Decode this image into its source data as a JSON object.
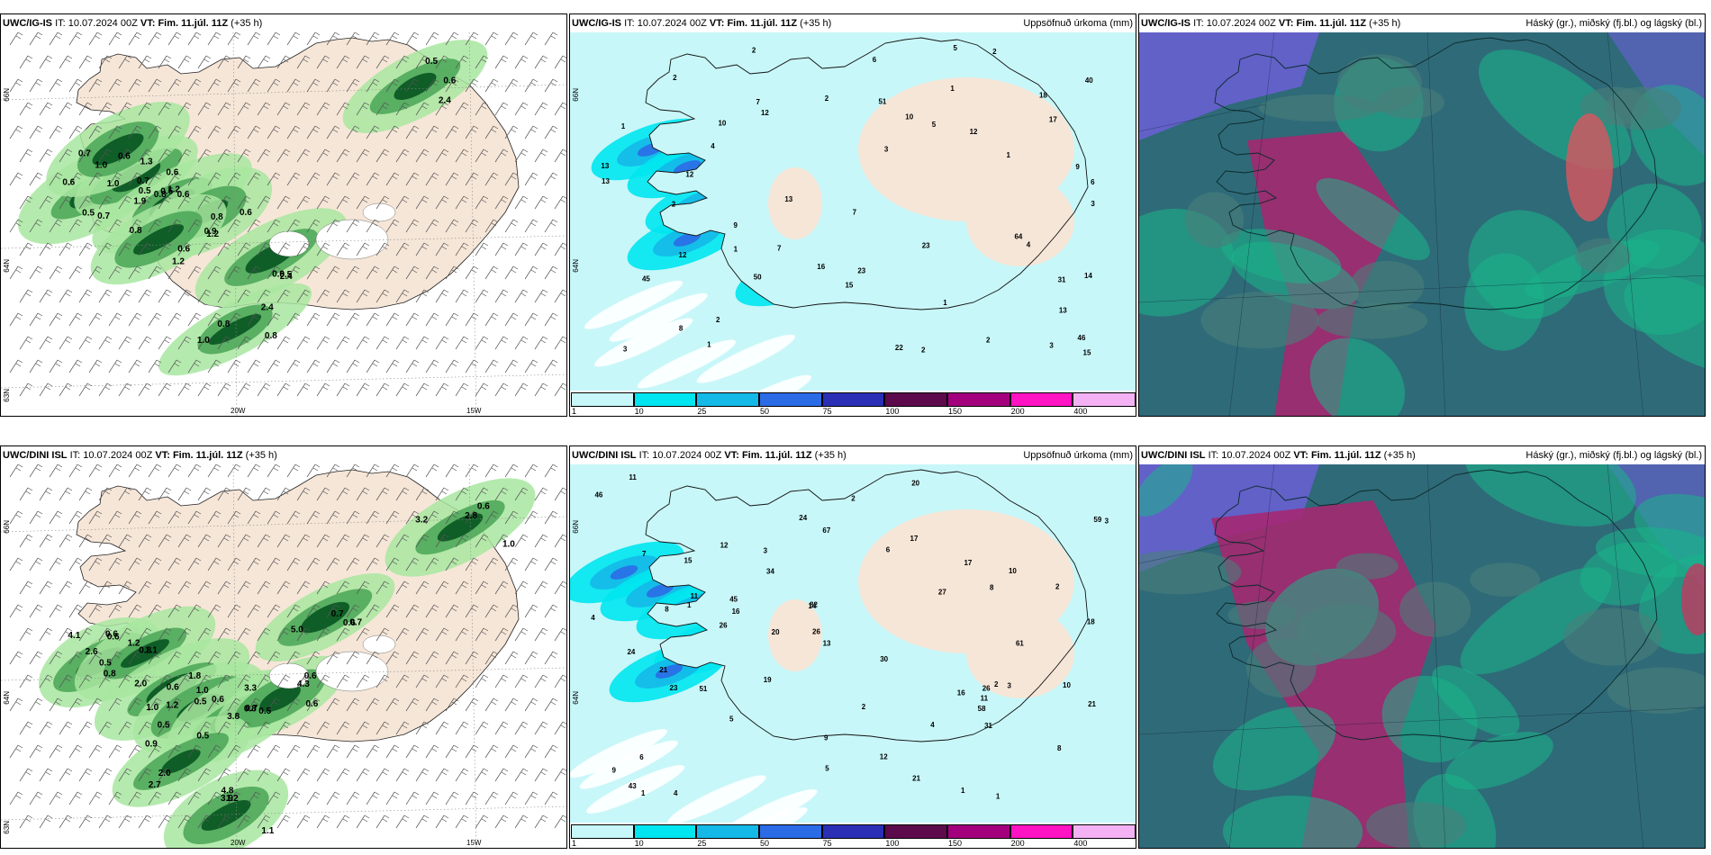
{
  "panels": [
    {
      "id": "p1",
      "model": "UWC/IG-IS",
      "it_label": "IT:",
      "it_value": "10.07.2024 00Z",
      "vt_label": "VT: Fim. 11.júl. 11Z",
      "lead": "(+35 h)",
      "right_title": "",
      "kind": "wind",
      "lat_labels": [
        "66N",
        "64N",
        "63N"
      ],
      "lon_labels": [
        "20W",
        "15W"
      ],
      "values": [
        "0.5",
        "0.5",
        "0.6",
        "0.5",
        "1.2",
        "1.0",
        "0.9",
        "0.7",
        "0.6",
        "0.6",
        "1.0",
        "0.8",
        "0.9",
        "1.2",
        "2.4",
        "2.4",
        "1.3",
        "2.4",
        "1.9",
        "0.6",
        "0.7",
        "0.6",
        "0.8",
        "0.8",
        "0.5",
        "1.0",
        "0.5",
        "0.7",
        "0.6",
        "0.8",
        "1.2",
        "0.6",
        "0.8"
      ]
    },
    {
      "id": "p2",
      "model": "UWC/IG-IS",
      "it_label": "IT:",
      "it_value": "10.07.2024 00Z",
      "vt_label": "VT: Fim. 11.júl. 11Z",
      "lead": "(+35 h)",
      "right_title": "Uppsöfnuð úrkoma (mm)",
      "kind": "precip",
      "lat_labels": [
        "66N",
        "64N"
      ],
      "lon_labels": [],
      "values": [
        "12",
        "9",
        "5",
        "6",
        "13",
        "14",
        "7",
        "5",
        "31",
        "18",
        "4",
        "4",
        "1",
        "50",
        "45",
        "7",
        "9",
        "13",
        "2",
        "2",
        "46",
        "51",
        "8",
        "12",
        "3",
        "2",
        "3",
        "1",
        "22",
        "40",
        "1",
        "15",
        "2",
        "6",
        "12",
        "13",
        "3",
        "23",
        "17",
        "64",
        "2",
        "1",
        "16",
        "23",
        "13",
        "2",
        "10",
        "12",
        "7",
        "2",
        "3",
        "10",
        "2",
        "1",
        "1",
        "15"
      ]
    },
    {
      "id": "p3",
      "model": "UWC/IG-IS",
      "it_label": "IT:",
      "it_value": "10.07.2024 00Z",
      "vt_label": "VT: Fim. 11.júl. 11Z",
      "lead": "(+35 h)",
      "right_title": "Háský (gr.), miðský (fj.bl.) og lágský (bl.)",
      "kind": "cloud",
      "lat_labels": [],
      "lon_labels": [],
      "values": []
    },
    {
      "id": "p4",
      "model": "UWC/DINI ISL",
      "it_label": "IT:",
      "it_value": "10.07.2024 00Z",
      "vt_label": "VT: Fim. 11.júl. 11Z",
      "lead": "(+35 h)",
      "right_title": "",
      "kind": "wind",
      "lat_labels": [
        "66N",
        "64N",
        "63N"
      ],
      "lon_labels": [
        "20W",
        "15W"
      ],
      "values": [
        "0.5",
        "0.6",
        "0.6",
        "0.5",
        "0.8",
        "0.5",
        "0.5",
        "1.2",
        "0.6",
        "0.7",
        "4.1",
        "1.8",
        "2.0",
        "3.3",
        "3.8",
        "4.3",
        "2.7",
        "3.9",
        "2.8",
        "5.0",
        "2.6",
        "0.8",
        "1.0",
        "1.0",
        "0.7",
        "0.6",
        "0.9",
        "4.8",
        "3.2",
        "0.6",
        "1.1",
        "0.8",
        "1.2",
        "0.5",
        "0.6",
        "0.6",
        "2.0",
        "1.1",
        "1.0",
        "0.7",
        "0.6",
        "1.2"
      ]
    },
    {
      "id": "p5",
      "model": "UWC/DINI ISL",
      "it_label": "IT:",
      "it_value": "10.07.2024 00Z",
      "vt_label": "VT: Fim. 11.júl. 11Z",
      "lead": "(+35 h)",
      "right_title": "Uppsöfnuð úrkoma (mm)",
      "kind": "precip",
      "lat_labels": [
        "66N",
        "64N"
      ],
      "lon_labels": [],
      "values": [
        "6",
        "16",
        "19",
        "21",
        "11",
        "9",
        "10",
        "8",
        "12",
        "10",
        "8",
        "3",
        "1",
        "16",
        "43",
        "26",
        "17",
        "23",
        "4",
        "2",
        "30",
        "34",
        "45",
        "20",
        "21",
        "26",
        "27",
        "3",
        "2",
        "9",
        "61",
        "15",
        "11",
        "24",
        "3",
        "1",
        "82",
        "59",
        "67",
        "51",
        "46",
        "5",
        "7",
        "5",
        "13",
        "26",
        "24",
        "8",
        "2",
        "31",
        "58",
        "17",
        "4",
        "1",
        "20",
        "6",
        "4",
        "11",
        "14",
        "18",
        "12",
        "21",
        "2",
        "1"
      ]
    },
    {
      "id": "p6",
      "model": "UWC/DINI ISL",
      "it_label": "IT:",
      "it_value": "10.07.2024 00Z",
      "vt_label": "VT: Fim. 11.júl. 11Z",
      "lead": "(+35 h)",
      "right_title": "Háský (gr.), miðský (fj.bl.) og lágský (bl.)",
      "kind": "cloud",
      "lat_labels": [],
      "lon_labels": [],
      "values": []
    }
  ],
  "colorbar": {
    "ticks": [
      "1",
      "10",
      "25",
      "50",
      "75",
      "100",
      "150",
      "200",
      "400"
    ],
    "colors": [
      "#c8f7f9",
      "#00e5ef",
      "#14b9e8",
      "#2b6be6",
      "#2b2fb6",
      "#5d0a4c",
      "#a3007e",
      "#ff13c2",
      "#f4b2f4"
    ]
  },
  "colors": {
    "land": "#f6e6d8",
    "sea_wind": "#ffffff",
    "sea_precip": "#c8f7f9",
    "green_light": "#a8e6a0",
    "green_mid": "#4fa85a",
    "green_dark": "#0c5a24",
    "cloud_high": "#3c6e6e",
    "cloud_mid": "#a9256e",
    "cloud_low": "#6b5fd6"
  }
}
